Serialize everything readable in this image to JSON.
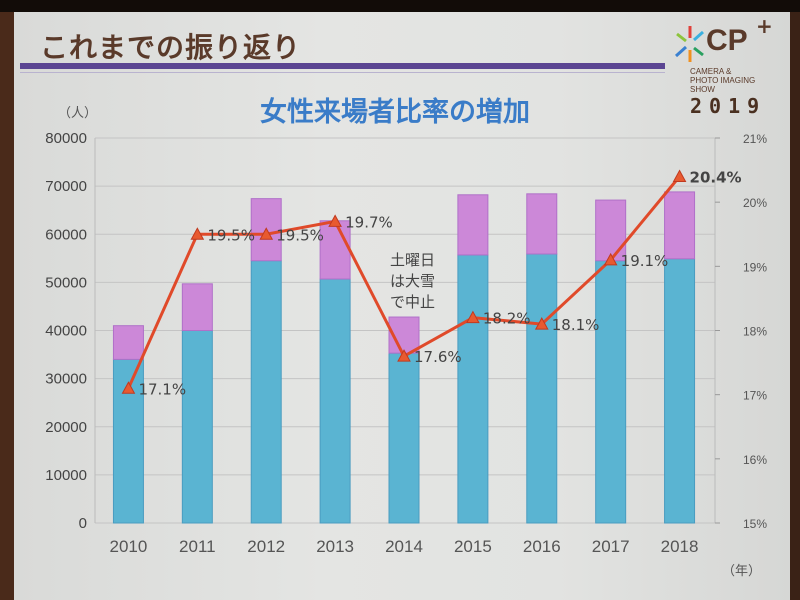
{
  "slide": {
    "heading": "これまでの振り返り",
    "logo": {
      "brand": "CP",
      "plus": "+",
      "subtitle_lines": [
        "CAMERA &",
        "PHOTO IMAGING",
        "SHOW"
      ],
      "year": "2019"
    }
  },
  "chart_data": {
    "type": "bar",
    "stacked": true,
    "title": "女性来場者比率の増加",
    "ylabel": "（人）",
    "xlabel": "（年）",
    "y2label": "",
    "categories": [
      "2010",
      "2011",
      "2012",
      "2013",
      "2014",
      "2015",
      "2016",
      "2017",
      "2018"
    ],
    "ylim": [
      0,
      80000
    ],
    "yticks": [
      "0",
      "10000",
      "20000",
      "30000",
      "40000",
      "50000",
      "60000",
      "70000",
      "80000"
    ],
    "y2lim": [
      15,
      21
    ],
    "y2ticks": [
      "15%",
      "16%",
      "17%",
      "18%",
      "19%",
      "20%",
      "21%"
    ],
    "series": [
      {
        "name": "male",
        "color": "#5ab4d2",
        "values": [
          34000,
          40000,
          54500,
          50700,
          35300,
          55700,
          55900,
          54500,
          54900
        ]
      },
      {
        "name": "female",
        "color": "#cc88d8",
        "values": [
          7000,
          9700,
          12900,
          12100,
          7500,
          12500,
          12500,
          12600,
          13900
        ]
      },
      {
        "name": "female_ratio",
        "type": "line",
        "axis": "right",
        "color": "#e04a2a",
        "values": [
          17.1,
          19.5,
          19.5,
          19.7,
          17.6,
          18.2,
          18.1,
          19.1,
          20.4
        ],
        "labels": [
          "17.1%",
          "19.5%",
          "19.5%",
          "19.7%",
          "17.6%",
          "18.2%",
          "18.1%",
          "19.1%",
          "20.4%"
        ]
      }
    ],
    "annotation": [
      "土曜日",
      "は大雪",
      "で中止"
    ],
    "grid": true
  }
}
